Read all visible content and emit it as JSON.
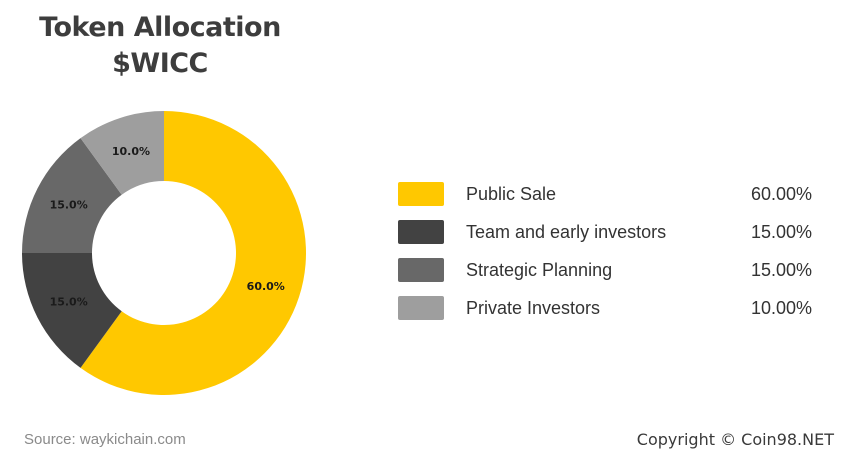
{
  "title": {
    "line1": "Token Allocation",
    "line2": "$WICC"
  },
  "chart_data": {
    "type": "pie",
    "categories": [
      "Public Sale",
      "Team and early investors",
      "Strategic Planning",
      "Private Investors"
    ],
    "values": [
      60.0,
      15.0,
      15.0,
      10.0
    ],
    "data_labels": [
      "60.0%",
      "15.0%",
      "15.0%",
      "10.0%"
    ],
    "legend_values": [
      "60.00%",
      "15.00%",
      "15.00%",
      "10.00%"
    ],
    "colors": [
      "#FFC800",
      "#424242",
      "#686868",
      "#9E9E9E"
    ],
    "label_colors": [
      "#1a1a1a",
      "#1a1a1a",
      "#1a1a1a",
      "#1a1a1a"
    ],
    "style": "donut",
    "legend_position": "right"
  },
  "footer": {
    "source": "Source: waykichain.com",
    "copyright": "Copyright © Coin98.NET"
  }
}
